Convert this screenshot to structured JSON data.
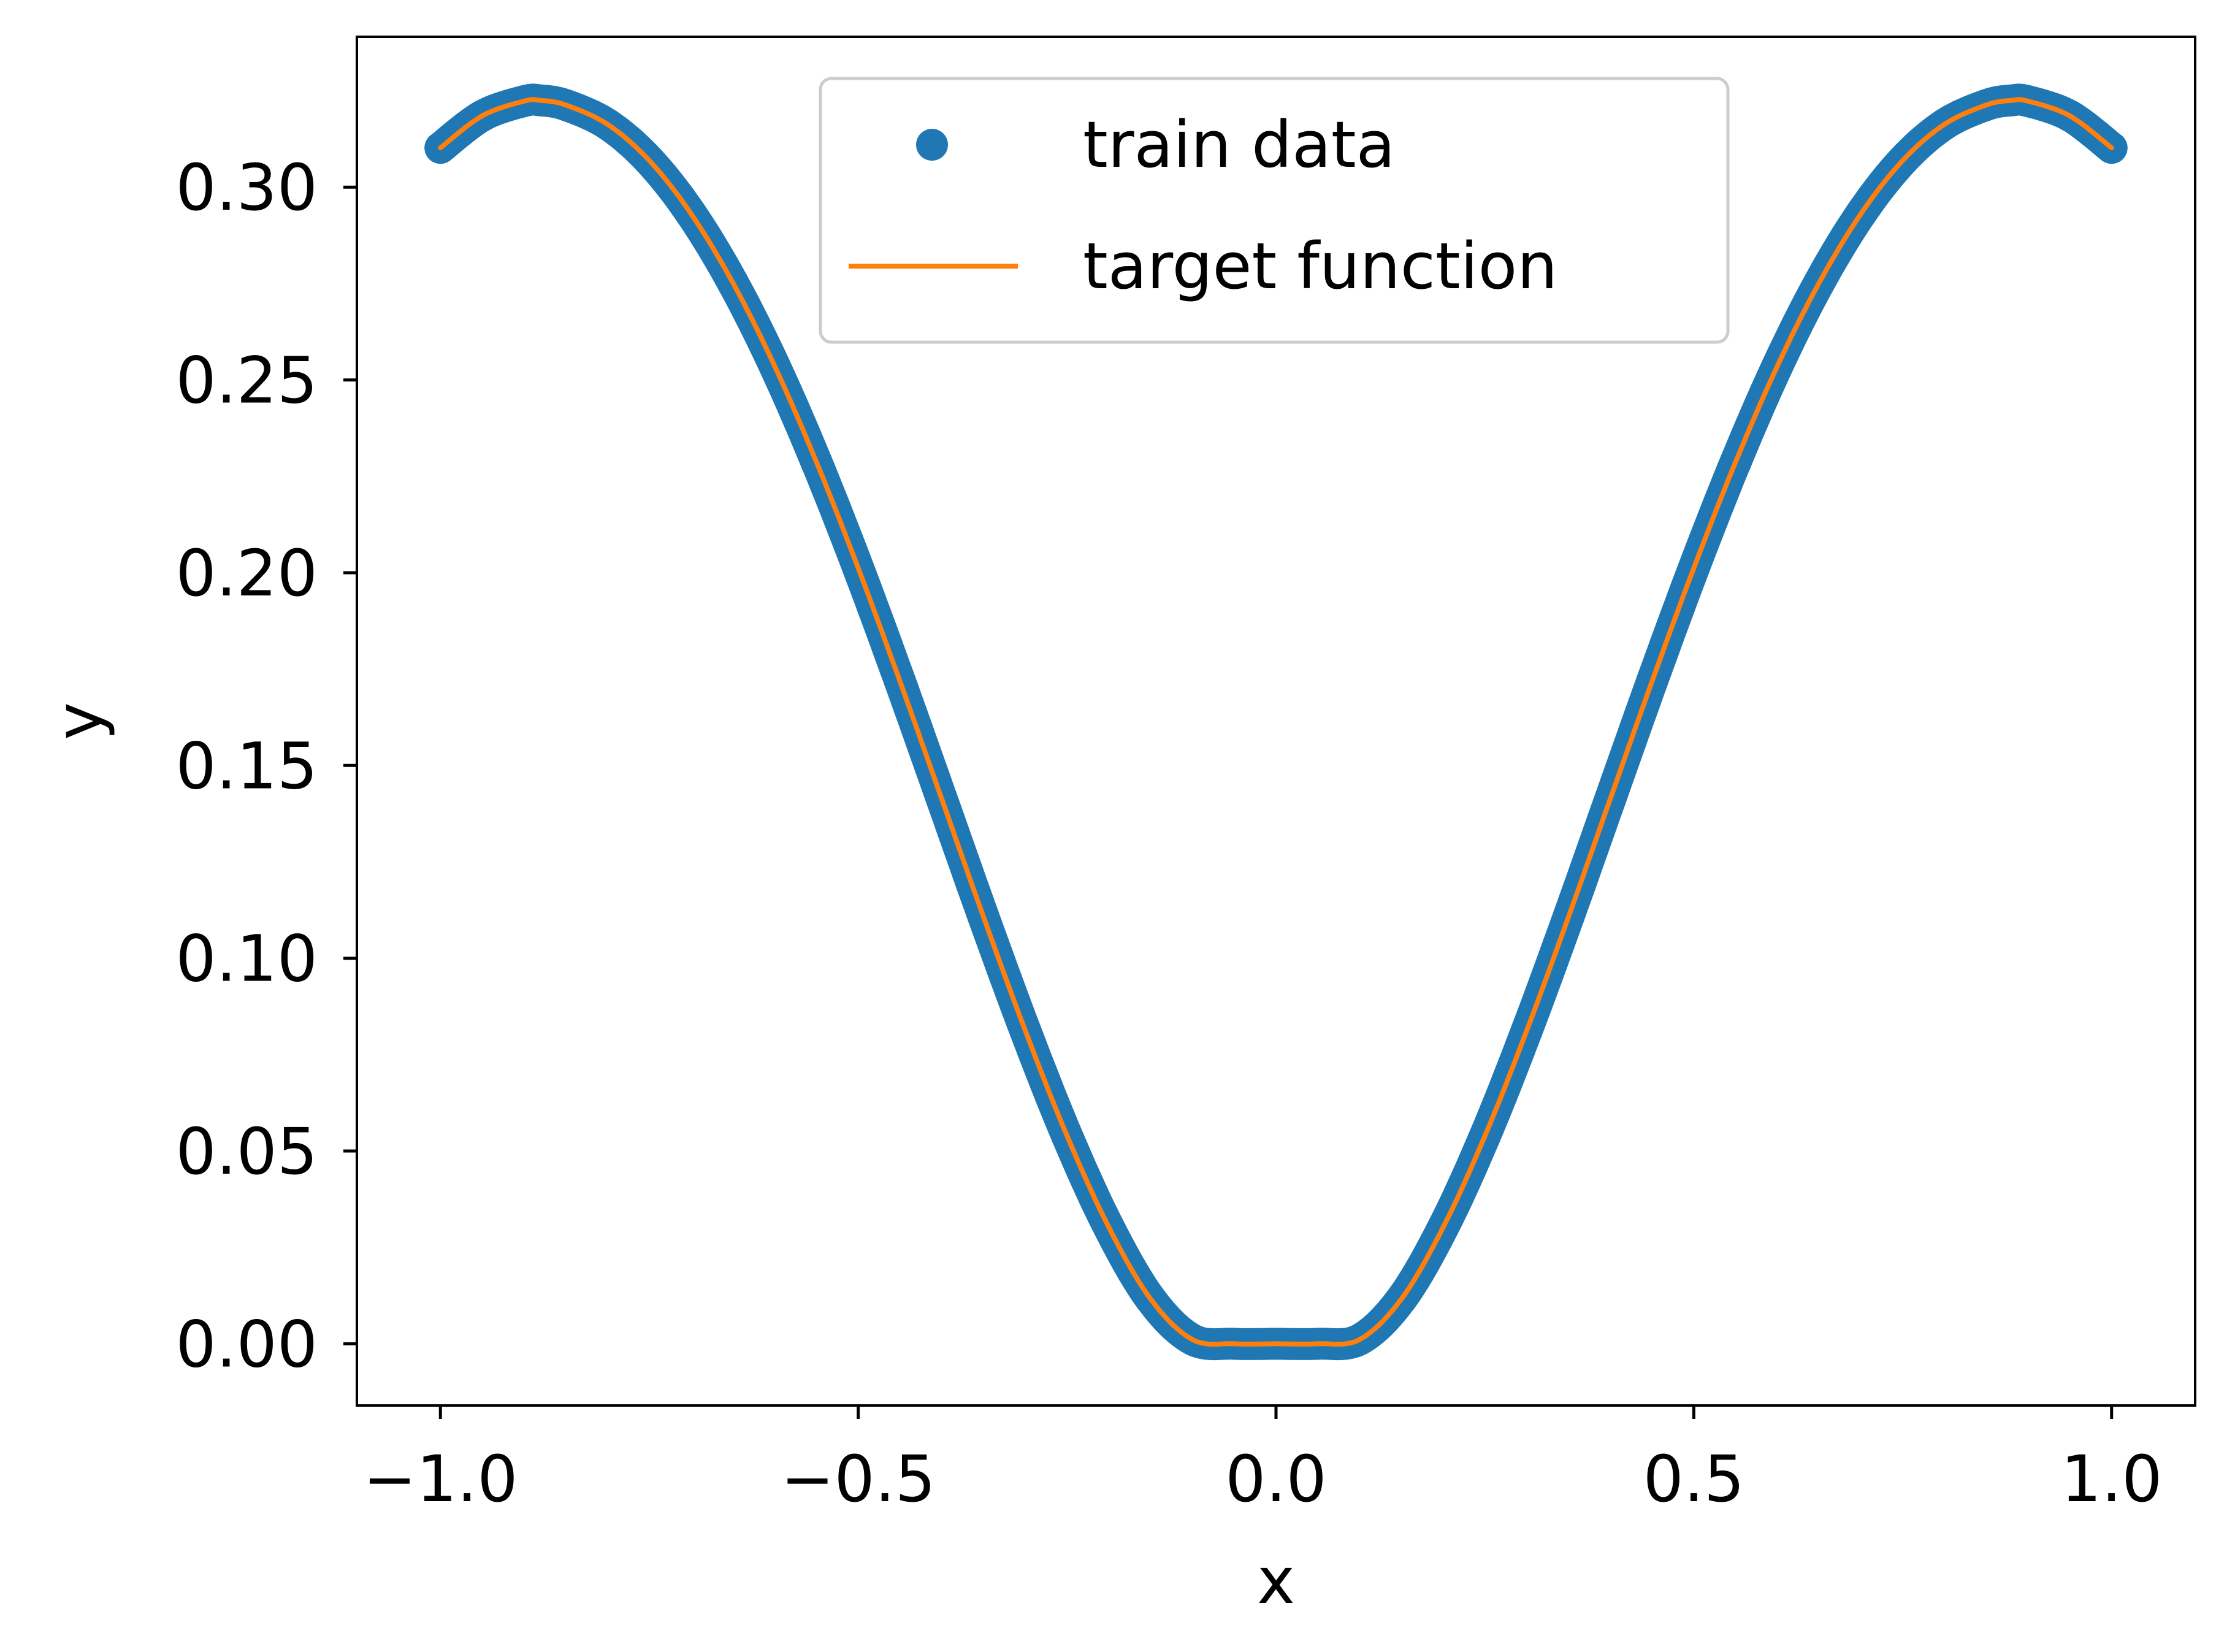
{
  "chart_data": {
    "type": "line",
    "title": "",
    "xlabel": "x",
    "ylabel": "y",
    "xlim": [
      -1.1,
      1.1
    ],
    "ylim": [
      -0.016,
      0.339
    ],
    "xticks": [
      -1.0,
      -0.5,
      0.0,
      0.5,
      1.0
    ],
    "xtick_labels": [
      "−1.0",
      "−0.5",
      "0.0",
      "0.5",
      "1.0"
    ],
    "yticks": [
      0.0,
      0.05,
      0.1,
      0.15,
      0.2,
      0.25,
      0.3
    ],
    "ytick_labels": [
      "0.00",
      "0.05",
      "0.10",
      "0.15",
      "0.20",
      "0.25",
      "0.30"
    ],
    "grid": false,
    "legend_position": "upper-center",
    "series": [
      {
        "name": "train data",
        "kind": "scatter",
        "color": "#1f77b4",
        "x": [
          -1.0,
          -0.95,
          -0.9,
          -0.88,
          -0.85,
          -0.8,
          -0.75,
          -0.7,
          -0.65,
          -0.6,
          -0.55,
          -0.5,
          -0.45,
          -0.4,
          -0.35,
          -0.3,
          -0.25,
          -0.2,
          -0.15,
          -0.1,
          -0.05,
          0.0,
          0.05,
          0.1,
          0.15,
          0.2,
          0.25,
          0.3,
          0.35,
          0.4,
          0.45,
          0.5,
          0.55,
          0.6,
          0.65,
          0.7,
          0.75,
          0.8,
          0.85,
          0.88,
          0.9,
          0.95,
          1.0
        ],
        "y": [
          0.3102,
          0.3185,
          0.3223,
          0.3225,
          0.3213,
          0.3163,
          0.3069,
          0.2931,
          0.2752,
          0.2536,
          0.2287,
          0.2012,
          0.1718,
          0.1413,
          0.1107,
          0.0812,
          0.0539,
          0.0302,
          0.0116,
          0.0011,
          0.0,
          0.0,
          0.0,
          0.0011,
          0.0116,
          0.0302,
          0.0539,
          0.0812,
          0.1107,
          0.1413,
          0.1718,
          0.2012,
          0.2287,
          0.2536,
          0.2752,
          0.2931,
          0.3069,
          0.3163,
          0.3213,
          0.3225,
          0.3223,
          0.3185,
          0.3102
        ]
      },
      {
        "name": "target function",
        "kind": "line",
        "color": "#ff7f0e",
        "x": [
          -1.0,
          -0.95,
          -0.9,
          -0.88,
          -0.85,
          -0.8,
          -0.75,
          -0.7,
          -0.65,
          -0.6,
          -0.55,
          -0.5,
          -0.45,
          -0.4,
          -0.35,
          -0.3,
          -0.25,
          -0.2,
          -0.15,
          -0.1,
          -0.05,
          0.0,
          0.05,
          0.1,
          0.15,
          0.2,
          0.25,
          0.3,
          0.35,
          0.4,
          0.45,
          0.5,
          0.55,
          0.6,
          0.65,
          0.7,
          0.75,
          0.8,
          0.85,
          0.88,
          0.9,
          0.95,
          1.0
        ],
        "y": [
          0.3102,
          0.3185,
          0.3223,
          0.3225,
          0.3213,
          0.3163,
          0.3069,
          0.2931,
          0.2752,
          0.2536,
          0.2287,
          0.2012,
          0.1718,
          0.1413,
          0.1107,
          0.0812,
          0.0539,
          0.0302,
          0.0116,
          0.0011,
          0.0,
          0.0,
          0.0,
          0.0011,
          0.0116,
          0.0302,
          0.0539,
          0.0812,
          0.1107,
          0.1413,
          0.1718,
          0.2012,
          0.2287,
          0.2536,
          0.2752,
          0.2931,
          0.3069,
          0.3163,
          0.3213,
          0.3225,
          0.3223,
          0.3185,
          0.3102
        ]
      }
    ]
  }
}
